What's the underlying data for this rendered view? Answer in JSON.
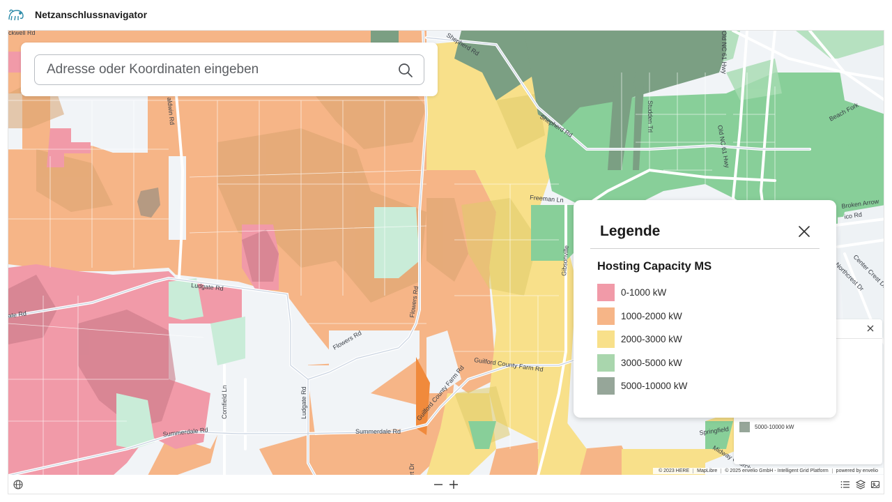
{
  "app": {
    "title": "Netzanschlussnavigator",
    "logo_icon": "elephant-logo-icon"
  },
  "search": {
    "placeholder": "Adresse oder Koordinaten eingeben",
    "value": "",
    "icon": "search-icon"
  },
  "map_labels": {
    "ludgate_rd": "Ludgate Rd",
    "ludgate_rd_vertical": "Ludgate Rd",
    "flowers_rd": "Flowers Rd",
    "flowers_rd_vertical": "Flowers Rd",
    "guilford_county_farm_rd": "Guilford County Farm Rd",
    "guilford_county_farm_rd_2": "Guilford County Farm Rd",
    "summerdale_rd": "Summerdale Rd",
    "summerdale_rd_2": "Summerdale Rd",
    "cornfield_ln": "Cornfield Ln",
    "freeman_ln": "Freeman Ln",
    "shepherd_rd": "Shepherd Rd",
    "shepherd_rd_2": "Shepherd Rd",
    "gibsonville": "Gibsonville",
    "broken_arrow": "Broken Arrow",
    "northcrest_dr": "Northcrest Dr",
    "center_crest_dr": "Center Crest Dr",
    "springfield": "Springfield",
    "midway_church": "Midway Church",
    "ate_rd": "ate Rd",
    "ckwell_rd": "ckwell Rd",
    "baldwin_rd": "aldwin Rd",
    "old_nc_hwy": "Old NC 61 Hwy",
    "old_nc_hwy_2": "Old NC 61 Hwy",
    "studden_trl": "Studden Trl",
    "beach_fork": "Beach Fork",
    "ico_rd": "ico Rd",
    "art_dr": "rt Dr"
  },
  "legend": {
    "title": "Legende",
    "close_icon": "close-icon",
    "subtitle": "Hosting Capacity MS",
    "items": [
      {
        "label": "0-1000 kW",
        "color": "#f19aa8"
      },
      {
        "label": "1000-2000 kW",
        "color": "#f6b587"
      },
      {
        "label": "2000-3000 kW",
        "color": "#f8e08a"
      },
      {
        "label": "3000-5000 kW",
        "color": "#a9d6ad"
      },
      {
        "label": "5000-10000 kW",
        "color": "#96a699"
      }
    ]
  },
  "mini_legend": {
    "close_icon": "close-icon",
    "visible_item": {
      "label": "5000-10000 kW",
      "color": "#96a699"
    }
  },
  "attribution": {
    "here": "© 2023 HERE",
    "maplibre": "MapLibre",
    "envelio": "© 2025 envelio GmbH - Intelligent Grid Platform",
    "powered": "powered by envelio"
  },
  "bottom_bar": {
    "globe_icon": "globe-icon",
    "zoom_out_icon": "zoom-out-icon",
    "zoom_in_icon": "zoom-in-icon",
    "list_icon": "list-icon",
    "layers_icon": "layers-icon",
    "image_icon": "image-icon"
  }
}
